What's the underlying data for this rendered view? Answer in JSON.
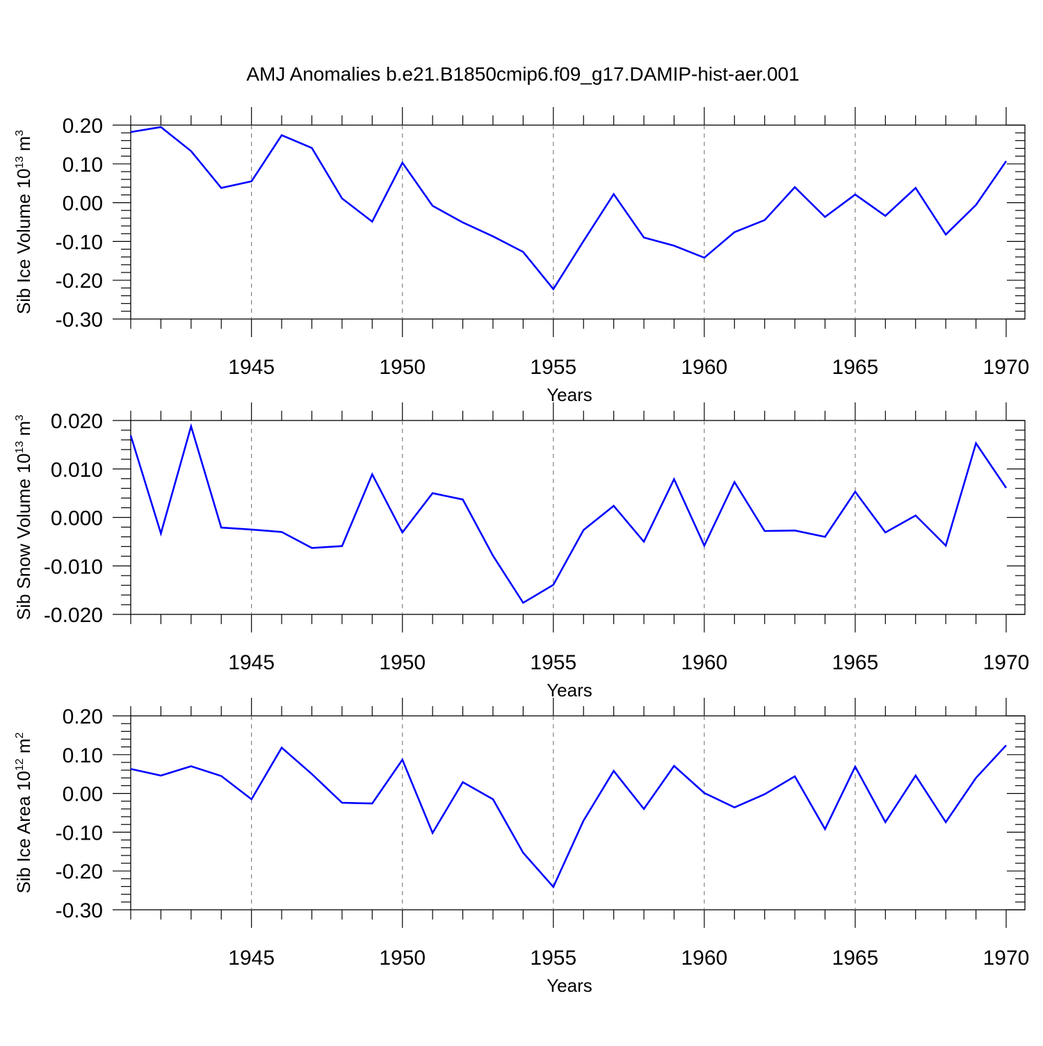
{
  "title": "AMJ Anomalies b.e21.B1850cmip6.f09_g17.DAMIP-hist-aer.001",
  "colors": {
    "line": "#0000ff",
    "axis": "#000000",
    "grid": "#808080",
    "background": "#ffffff"
  },
  "chart_data": [
    {
      "type": "line",
      "ylabel": {
        "main": "Sib Ice Volume 10",
        "exp": "13",
        "unit": " m",
        "unit_exp": "3"
      },
      "xlabel": "Years",
      "xlim": [
        1941,
        1970
      ],
      "ylim": [
        -0.3,
        0.2
      ],
      "grid": "vertical dashed at 1945, 1950, 1955, 1960, 1965",
      "ytick_labels": [
        "0.20",
        "0.10",
        "0.00",
        "-0.10",
        "-0.20",
        "-0.30"
      ],
      "yticks": [
        0.2,
        0.1,
        0.0,
        -0.1,
        -0.2,
        -0.3
      ],
      "xtick_labels": [
        "1945",
        "1950",
        "1955",
        "1960",
        "1965",
        "1970"
      ],
      "xticks": [
        1945,
        1950,
        1955,
        1960,
        1965,
        1970
      ],
      "x": [
        1941,
        1942,
        1943,
        1944,
        1945,
        1946,
        1947,
        1948,
        1949,
        1950,
        1951,
        1952,
        1953,
        1954,
        1955,
        1956,
        1957,
        1958,
        1959,
        1960,
        1961,
        1962,
        1963,
        1964,
        1965,
        1966,
        1967,
        1968,
        1969,
        1970
      ],
      "series": [
        {
          "name": "Sib Ice Volume",
          "values": [
            0.182,
            0.195,
            0.133,
            0.038,
            0.055,
            0.174,
            0.141,
            0.011,
            -0.049,
            0.103,
            -0.008,
            -0.051,
            -0.087,
            -0.127,
            -0.223,
            -0.099,
            0.022,
            -0.09,
            -0.111,
            -0.142,
            -0.076,
            -0.045,
            0.04,
            -0.037,
            0.021,
            -0.034,
            0.038,
            -0.082,
            -0.006,
            0.107
          ]
        }
      ]
    },
    {
      "type": "line",
      "ylabel": {
        "main": "Sib Snow Volume 10",
        "exp": "13",
        "unit": " m",
        "unit_exp": "3"
      },
      "xlabel": "Years",
      "xlim": [
        1941,
        1970
      ],
      "ylim": [
        -0.02,
        0.02
      ],
      "grid": "vertical dashed at 1945, 1950, 1955, 1960, 1965",
      "ytick_labels": [
        "0.020",
        "0.010",
        "0.000",
        "-0.010",
        "-0.020"
      ],
      "yticks": [
        0.02,
        0.01,
        0.0,
        -0.01,
        -0.02
      ],
      "xtick_labels": [
        "1945",
        "1950",
        "1955",
        "1960",
        "1965",
        "1970"
      ],
      "xticks": [
        1945,
        1950,
        1955,
        1960,
        1965,
        1970
      ],
      "x": [
        1941,
        1942,
        1943,
        1944,
        1945,
        1946,
        1947,
        1948,
        1949,
        1950,
        1951,
        1952,
        1953,
        1954,
        1955,
        1956,
        1957,
        1958,
        1959,
        1960,
        1961,
        1962,
        1963,
        1964,
        1965,
        1966,
        1967,
        1968,
        1969,
        1970
      ],
      "series": [
        {
          "name": "Sib Snow Volume",
          "values": [
            0.0169,
            -0.0033,
            0.0188,
            -0.0021,
            -0.0025,
            -0.003,
            -0.0063,
            -0.0059,
            0.0089,
            -0.0031,
            0.005,
            0.0037,
            -0.0079,
            -0.0176,
            -0.0139,
            -0.0026,
            0.0024,
            -0.005,
            0.0079,
            -0.0058,
            0.0073,
            -0.0028,
            -0.0027,
            -0.004,
            0.0053,
            -0.0031,
            0.0004,
            -0.0058,
            0.0153,
            0.0061
          ]
        }
      ]
    },
    {
      "type": "line",
      "ylabel": {
        "main": "Sib Ice Area 10",
        "exp": "12",
        "unit": " m",
        "unit_exp": "2"
      },
      "xlabel": "Years",
      "xlim": [
        1941,
        1970
      ],
      "ylim": [
        -0.3,
        0.2
      ],
      "grid": "vertical dashed at 1945, 1950, 1955, 1960, 1965",
      "ytick_labels": [
        "0.20",
        "0.10",
        "0.00",
        "-0.10",
        "-0.20",
        "-0.30"
      ],
      "yticks": [
        0.2,
        0.1,
        0.0,
        -0.1,
        -0.2,
        -0.3
      ],
      "xtick_labels": [
        "1945",
        "1950",
        "1955",
        "1960",
        "1965",
        "1970"
      ],
      "xticks": [
        1945,
        1950,
        1955,
        1960,
        1965,
        1970
      ],
      "x": [
        1941,
        1942,
        1943,
        1944,
        1945,
        1946,
        1947,
        1948,
        1949,
        1950,
        1951,
        1952,
        1953,
        1954,
        1955,
        1956,
        1957,
        1958,
        1959,
        1960,
        1961,
        1962,
        1963,
        1964,
        1965,
        1966,
        1967,
        1968,
        1969,
        1970
      ],
      "series": [
        {
          "name": "Sib Ice Area",
          "values": [
            0.063,
            0.046,
            0.07,
            0.045,
            -0.015,
            0.118,
            0.05,
            -0.024,
            -0.026,
            0.087,
            -0.102,
            0.029,
            -0.015,
            -0.153,
            -0.241,
            -0.07,
            0.058,
            -0.04,
            0.071,
            0.001,
            -0.036,
            -0.002,
            0.044,
            -0.092,
            0.069,
            -0.074,
            0.046,
            -0.074,
            0.04,
            0.124
          ]
        }
      ]
    }
  ]
}
